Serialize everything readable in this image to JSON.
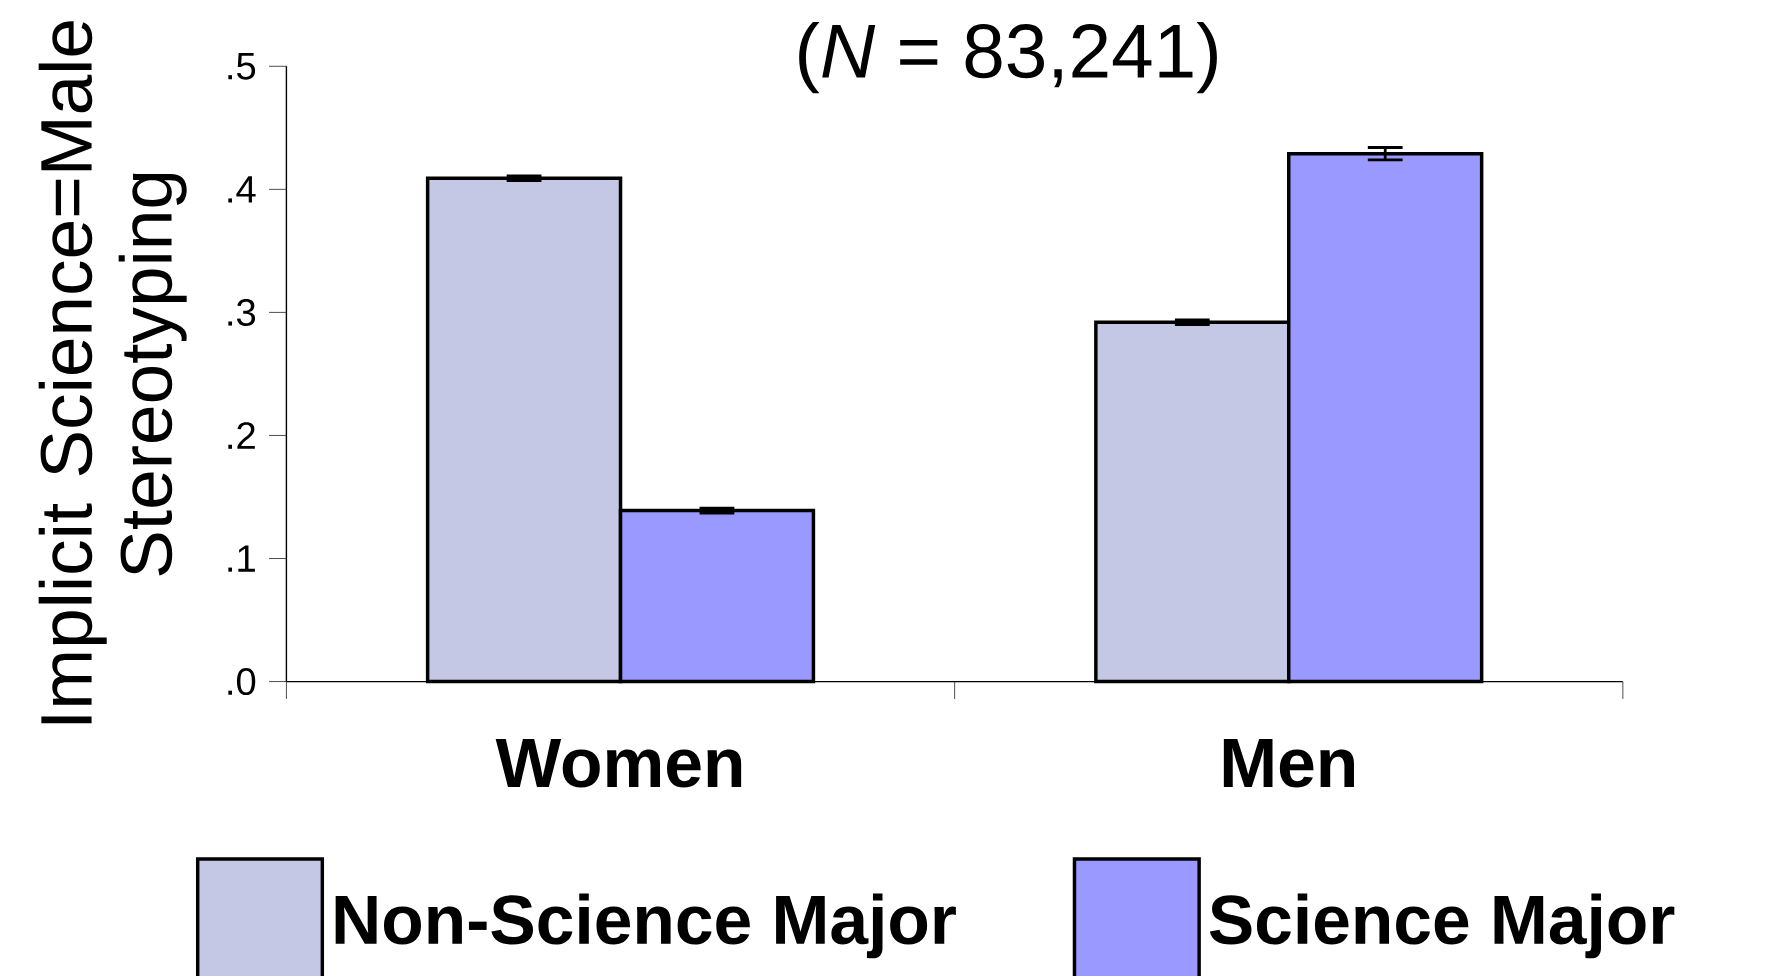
{
  "chart_data": {
    "type": "bar",
    "title": "(*N* = 83,241)",
    "ylabel": "Implicit Science=Male Stereotyping",
    "categories": [
      "Women",
      "Men"
    ],
    "series": [
      {
        "name": "Non-Science Major",
        "color": "#c4c8e4",
        "values": [
          0.409,
          0.292
        ],
        "errors": [
          0.002,
          0.002
        ]
      },
      {
        "name": "Science Major",
        "color": "#9999ff",
        "values": [
          0.139,
          0.429
        ],
        "errors": [
          0.002,
          0.005
        ]
      }
    ],
    "ylim": [
      0,
      0.5
    ],
    "yticks": [
      {
        "value": 0,
        "label": ".0"
      },
      {
        "value": 0.1,
        "label": ".1"
      },
      {
        "value": 0.2,
        "label": ".2"
      },
      {
        "value": 0.3,
        "label": ".3"
      },
      {
        "value": 0.4,
        "label": ".4"
      },
      {
        "value": 0.5,
        "label": ".5"
      }
    ],
    "grid": false,
    "legend": "bottom"
  }
}
